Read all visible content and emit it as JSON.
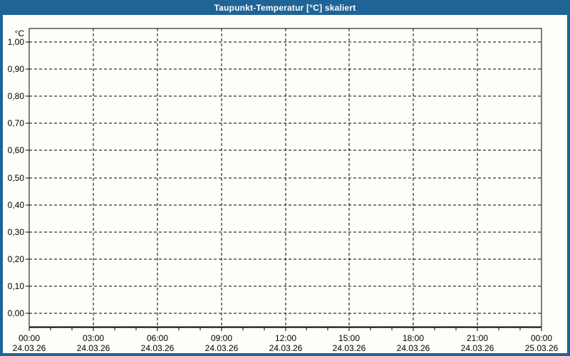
{
  "window": {
    "title": "Taupunkt-Temperatur [°C] skaliert",
    "colors": {
      "frame": "#1f6496",
      "title_text": "#ffffff",
      "background": "#fdfdfa",
      "grid": "#000000",
      "axis": "#000000",
      "label_text": "#000000"
    }
  },
  "chart_data": {
    "type": "line",
    "title": "Taupunkt-Temperatur [°C] skaliert",
    "xlabel": "",
    "ylabel": "°C",
    "unit_label": "°C",
    "ylim": [
      0.0,
      1.0
    ],
    "y_tick_step": 0.1,
    "y_tick_labels": [
      "1,00",
      "0,90",
      "0,80",
      "0,70",
      "0,60",
      "0,50",
      "0,40",
      "0,30",
      "0,20",
      "0,10",
      "0,00"
    ],
    "x_ticks": [
      {
        "time": "00:00",
        "date": "24.03.26"
      },
      {
        "time": "03:00",
        "date": "24.03.26"
      },
      {
        "time": "06:00",
        "date": "24.03.26"
      },
      {
        "time": "09:00",
        "date": "24.03.26"
      },
      {
        "time": "12:00",
        "date": "24.03.26"
      },
      {
        "time": "15:00",
        "date": "24.03.26"
      },
      {
        "time": "18:00",
        "date": "24.03.26"
      },
      {
        "time": "21:00",
        "date": "24.03.26"
      },
      {
        "time": "00:00",
        "date": "25.03.26"
      }
    ],
    "x_major_interval_hours": 3,
    "x_minor_interval_hours": 1,
    "x_total_hours": 24,
    "grid": "dashed",
    "legend": "none",
    "series": []
  }
}
